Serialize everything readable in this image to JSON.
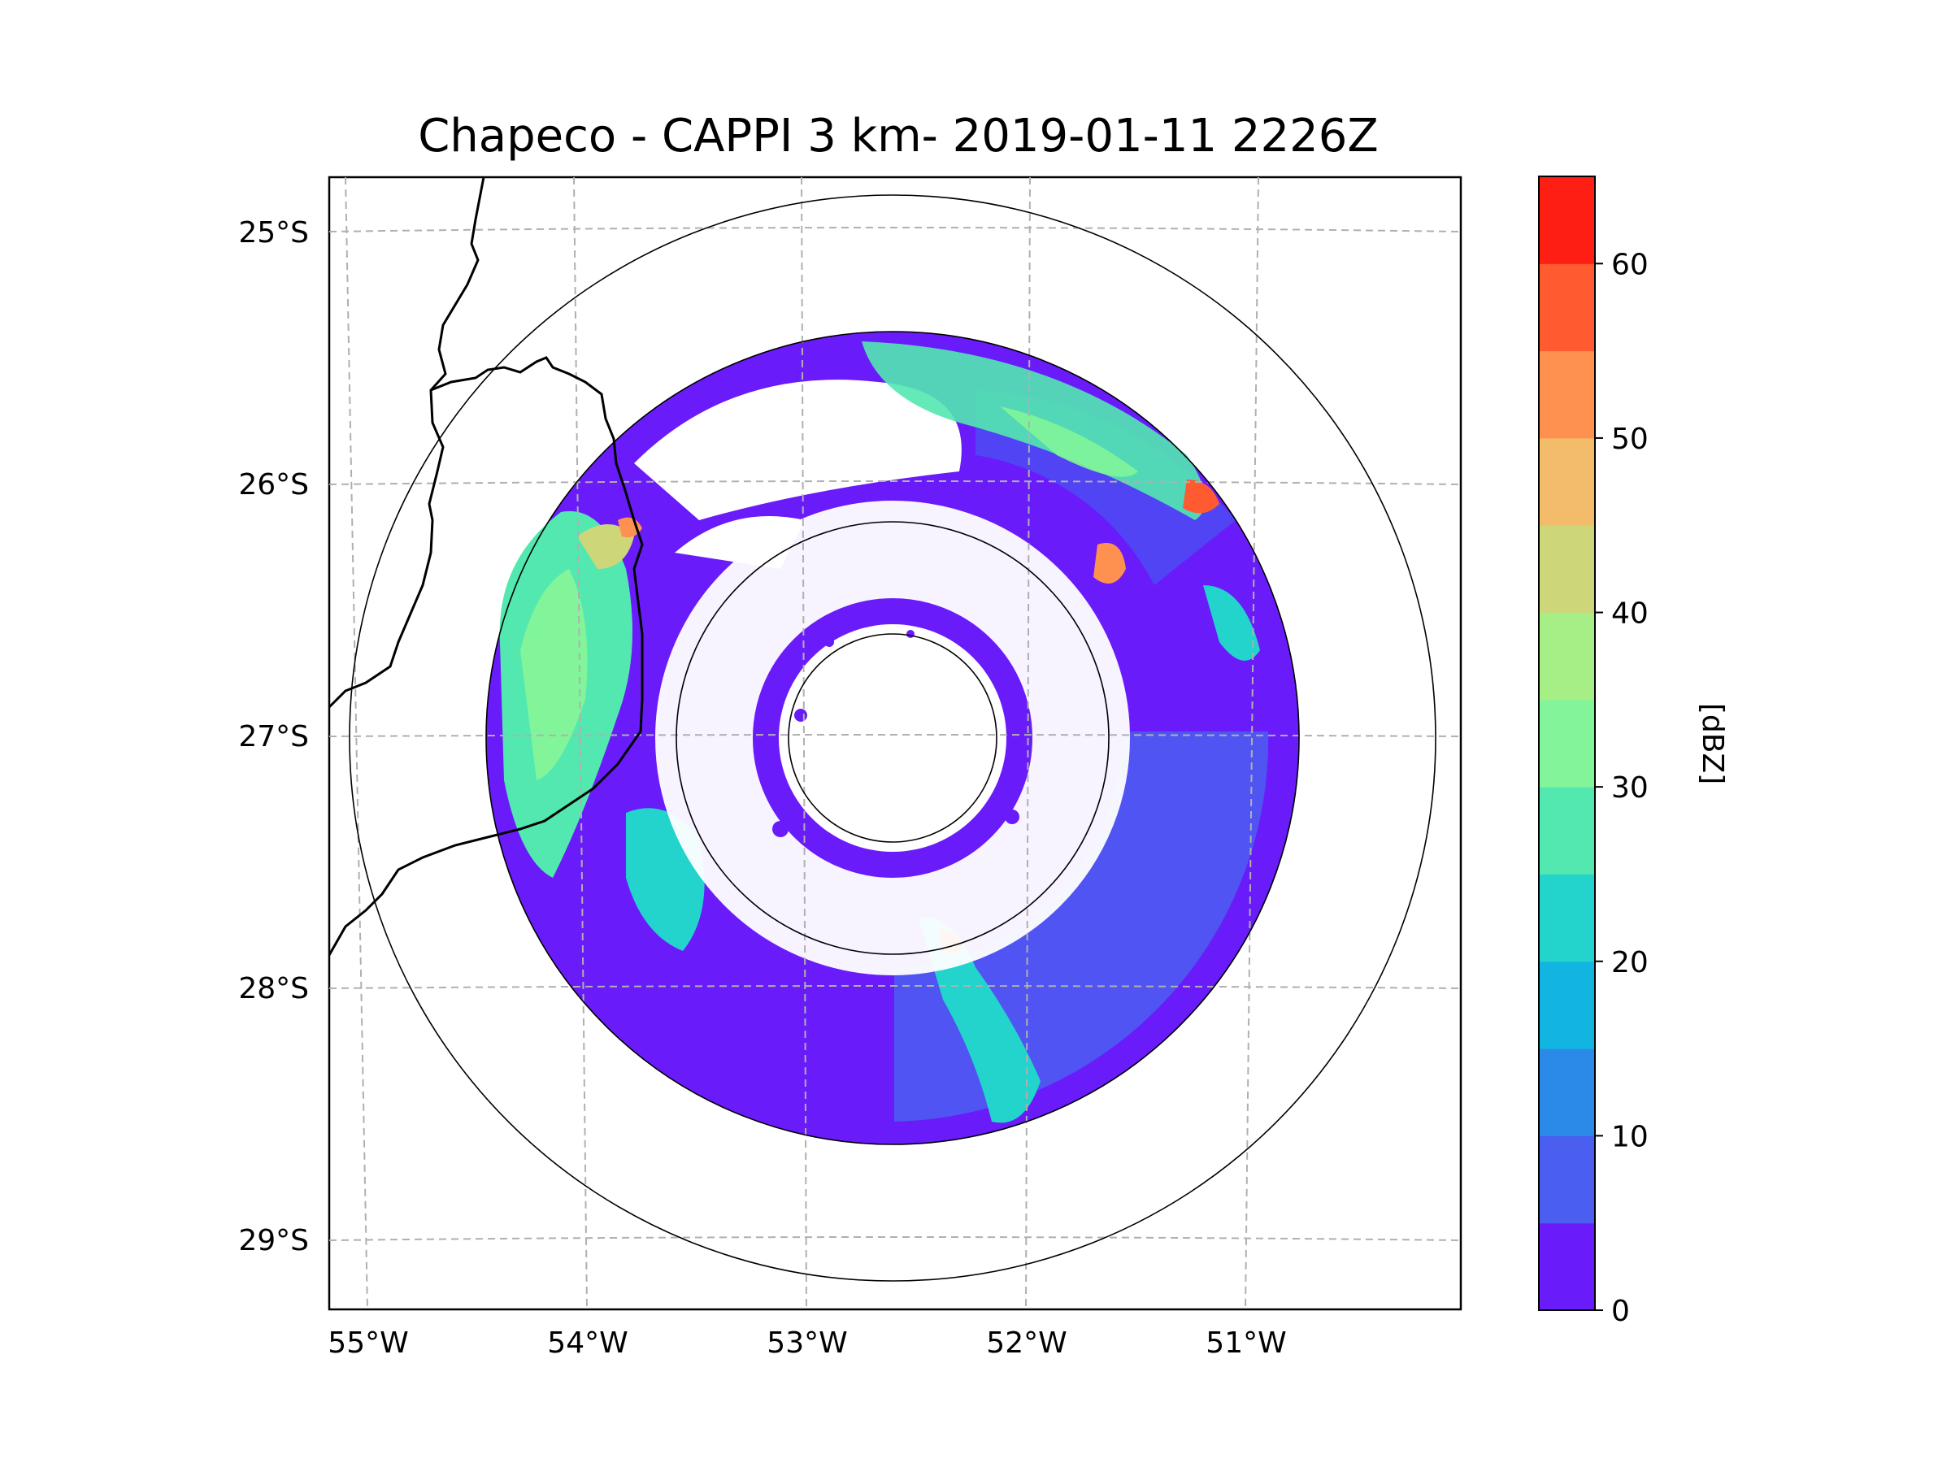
{
  "title": "Chapeco - CAPPI 3 km- 2019-01-11 2226Z",
  "map": {
    "radar_site": "Chapeco",
    "product": "CAPPI 3 km",
    "lat_ticks": [
      "25°S",
      "26°S",
      "27°S",
      "28°S",
      "29°S"
    ],
    "lon_ticks": [
      "55°W",
      "54°W",
      "53°W",
      "52°W",
      "51°W"
    ],
    "range_rings": 4
  },
  "colorbar": {
    "label": "[dBZ]",
    "ticks": [
      "0",
      "10",
      "20",
      "30",
      "40",
      "50",
      "60"
    ],
    "min": 0,
    "max": 65,
    "step": 5,
    "colors": [
      "#6a1bfa",
      "#4a5ef0",
      "#2b8ae8",
      "#12b5e0",
      "#22d4cc",
      "#52e8b0",
      "#82f59a",
      "#a6ef86",
      "#cdd77a",
      "#f2bc6a",
      "#ff9150",
      "#ff5a30",
      "#ff1e14"
    ]
  }
}
